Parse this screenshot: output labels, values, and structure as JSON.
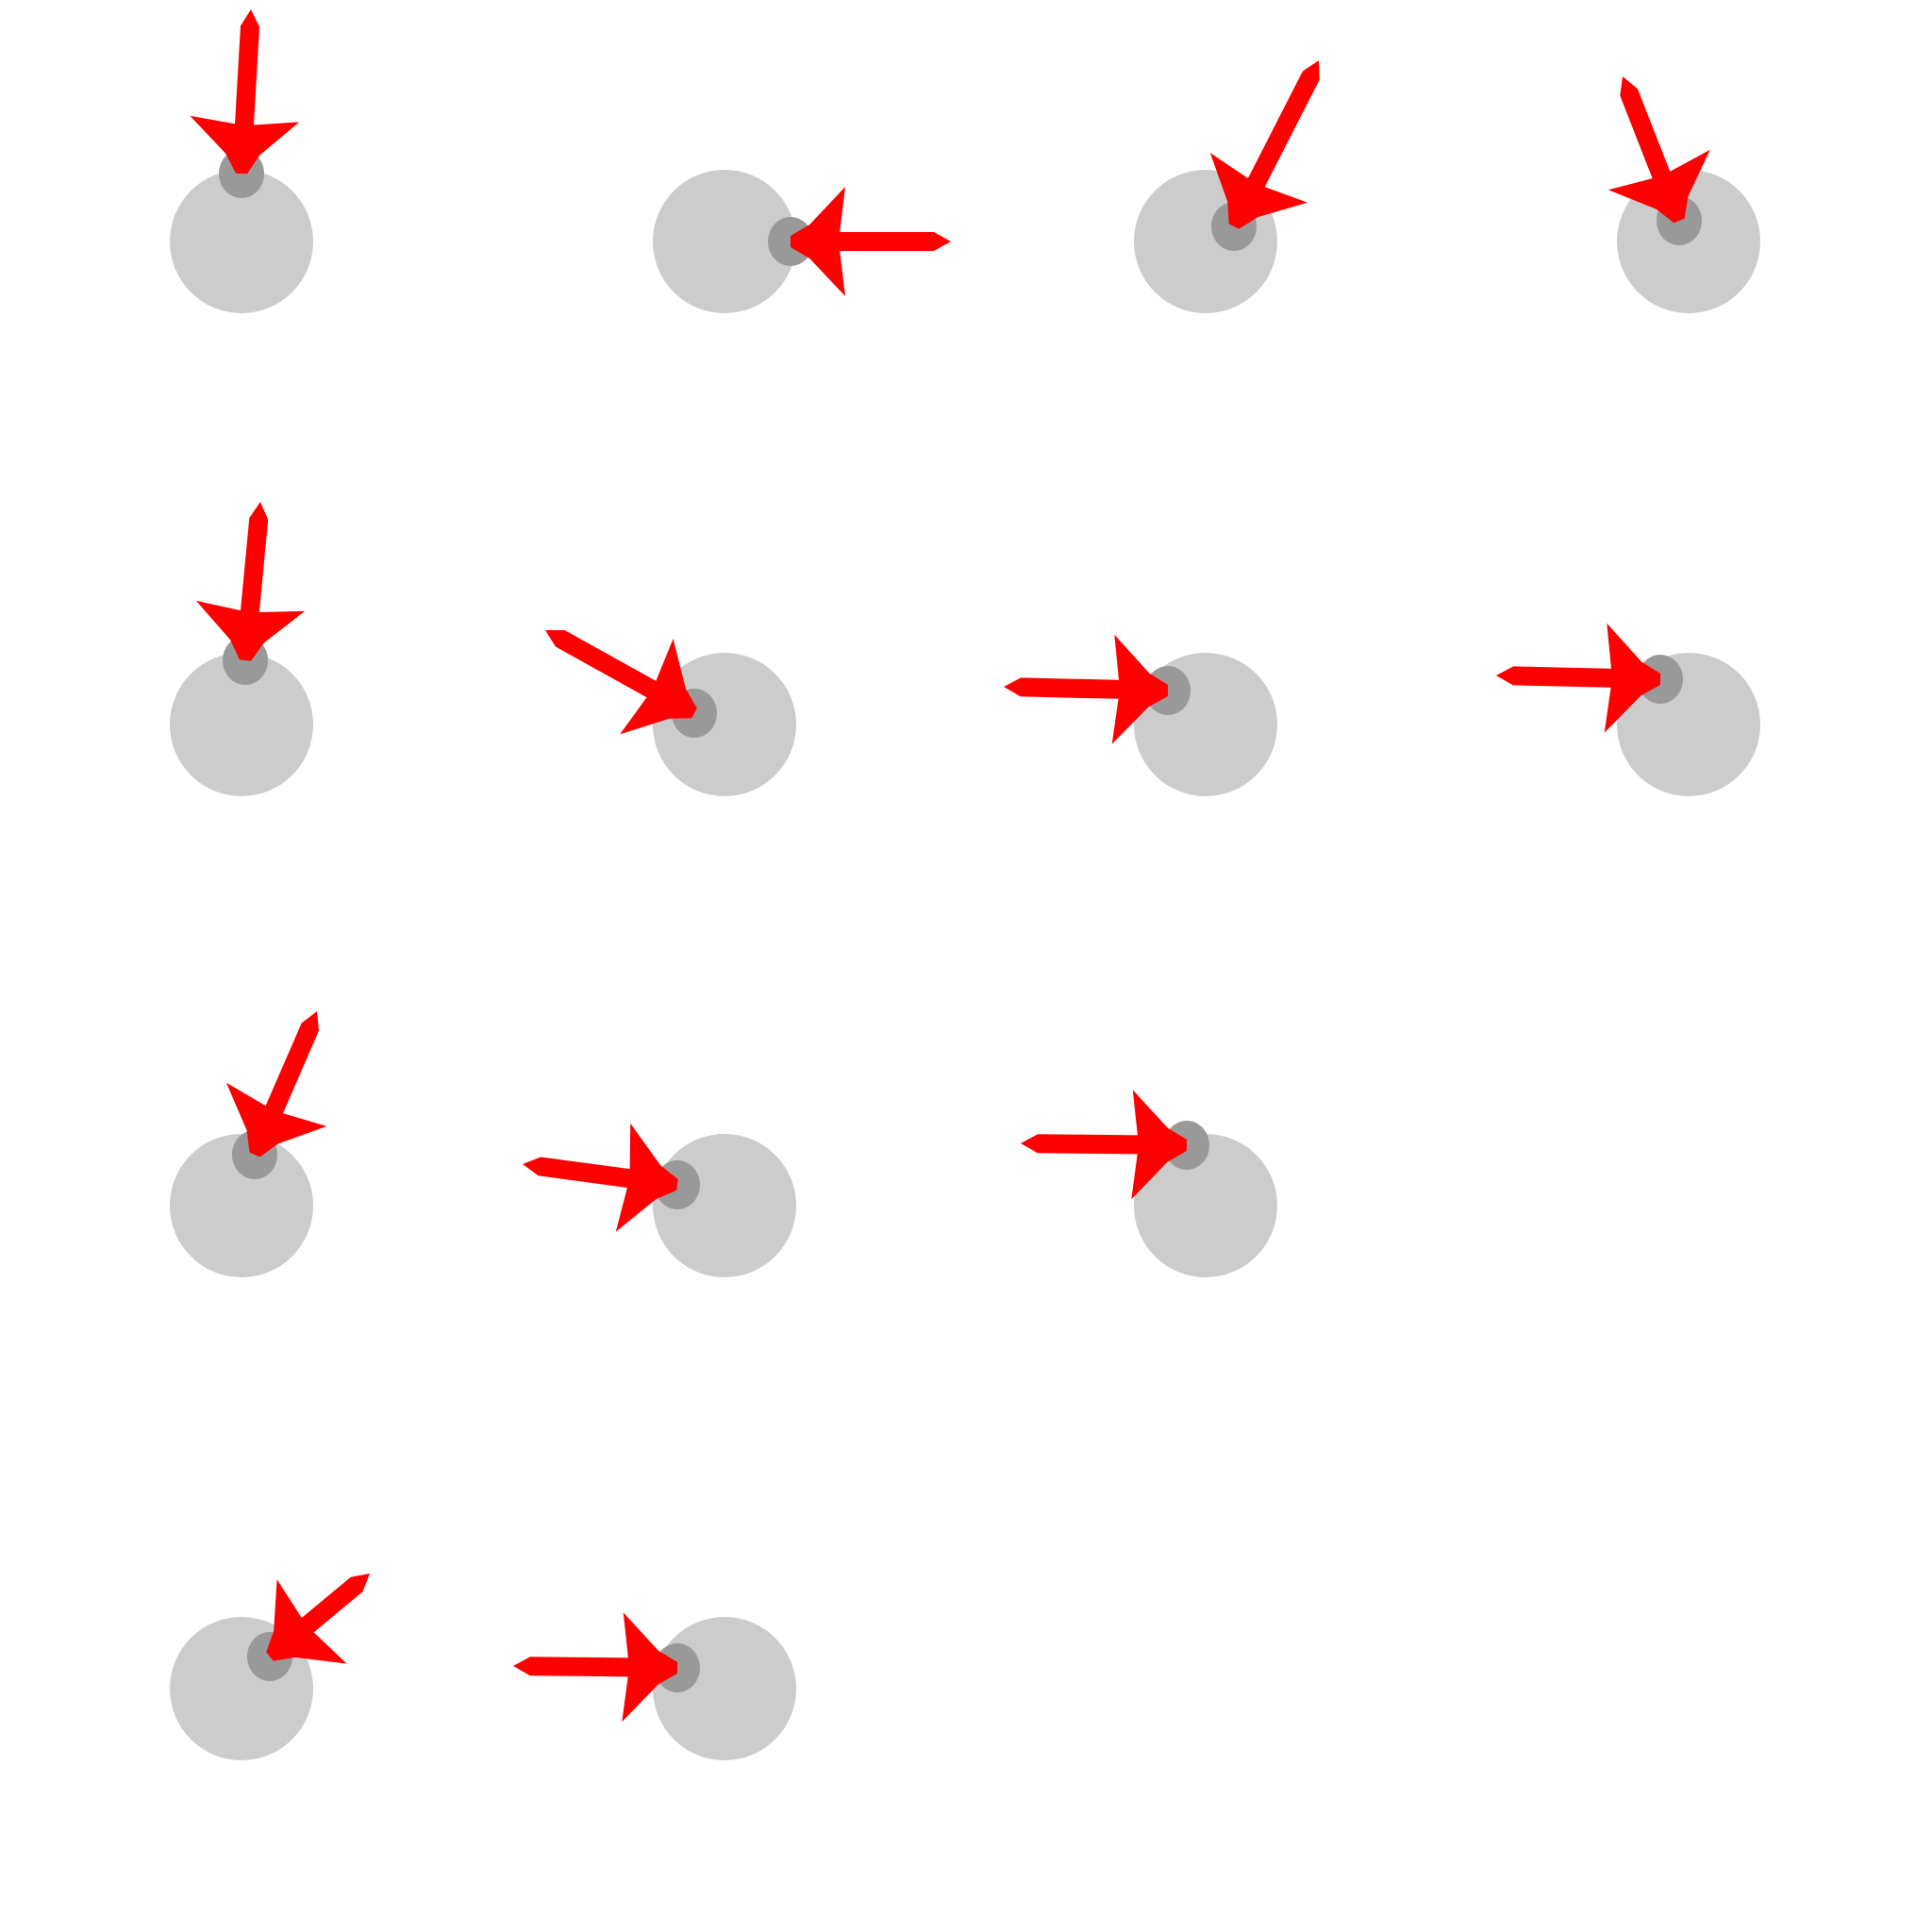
{
  "colors": {
    "background": "#ffffff",
    "target": "#cccccc",
    "contact": "#999999",
    "arrow": "#ff0000"
  },
  "icons": {
    "target": "circle-icon",
    "contact": "dot-icon",
    "arrow": "arrow-icon"
  },
  "rows": [
    {
      "items": [
        {
          "arrow_direction": "down"
        },
        {
          "arrow_direction": "left"
        },
        {
          "arrow_direction": "down-left"
        },
        {
          "arrow_direction": "down-right"
        }
      ]
    },
    {
      "items": [
        {
          "arrow_direction": "down"
        },
        {
          "arrow_direction": "down-right"
        },
        {
          "arrow_direction": "right"
        },
        {
          "arrow_direction": "right"
        }
      ]
    },
    {
      "items": [
        {
          "arrow_direction": "down-left"
        },
        {
          "arrow_direction": "right"
        },
        {
          "arrow_direction": "right"
        }
      ]
    },
    {
      "items": [
        {
          "arrow_direction": "down-left"
        },
        {
          "arrow_direction": "right"
        }
      ]
    }
  ]
}
